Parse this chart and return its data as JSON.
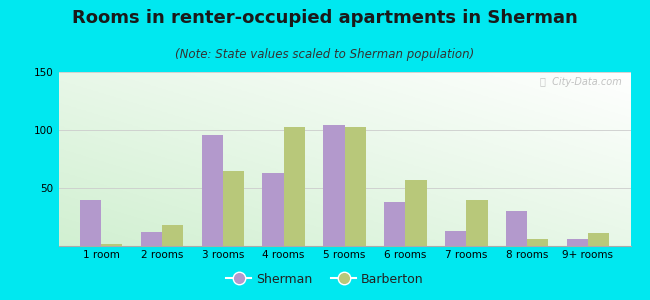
{
  "title": "Rooms in renter-occupied apartments in Sherman",
  "subtitle": "(Note: State values scaled to Sherman population)",
  "categories": [
    "1 room",
    "2 rooms",
    "3 rooms",
    "4 rooms",
    "5 rooms",
    "6 rooms",
    "7 rooms",
    "8 rooms",
    "9+ rooms"
  ],
  "sherman": [
    40,
    12,
    96,
    63,
    104,
    38,
    13,
    30,
    6
  ],
  "barberton": [
    2,
    18,
    65,
    103,
    103,
    57,
    40,
    6,
    11
  ],
  "sherman_color": "#b399cc",
  "barberton_color": "#b8c87a",
  "bg_outer": "#00e8f0",
  "ylim": [
    0,
    150
  ],
  "yticks": [
    50,
    100,
    150
  ],
  "bar_width": 0.35,
  "title_fontsize": 13,
  "subtitle_fontsize": 8.5,
  "tick_fontsize": 7.5,
  "legend_labels": [
    "Sherman",
    "Barberton"
  ],
  "watermark": "ⓘ  City-Data.com",
  "title_color": "#1a1a1a",
  "subtitle_color": "#333333"
}
